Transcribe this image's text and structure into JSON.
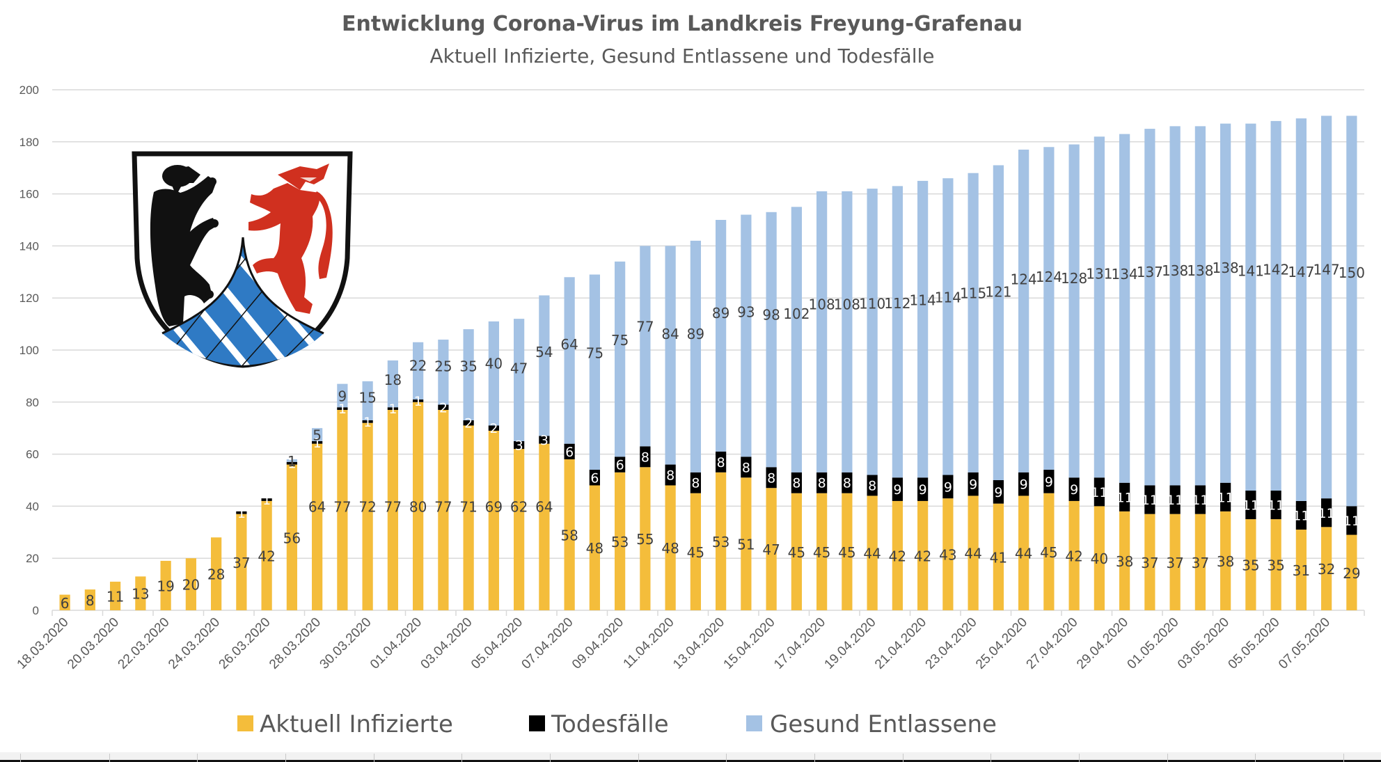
{
  "chart_data": {
    "type": "bar",
    "stacked": true,
    "title": "Entwicklung Corona-Virus im Landkreis Freyung-Grafenau",
    "subtitle": "Aktuell Infizierte, Gesund Entlassene und Todesfälle",
    "xlabel": "",
    "ylabel": "",
    "ylim": [
      0,
      200
    ],
    "yticks": [
      0,
      20,
      40,
      60,
      80,
      100,
      120,
      140,
      160,
      180,
      200
    ],
    "grid": true,
    "legend_position": "bottom",
    "categories": [
      "18.03.2020",
      "19.03.2020",
      "20.03.2020",
      "21.03.2020",
      "22.03.2020",
      "23.03.2020",
      "24.03.2020",
      "25.03.2020",
      "26.03.2020",
      "27.03.2020",
      "28.03.2020",
      "29.03.2020",
      "30.03.2020",
      "31.03.2020",
      "01.04.2020",
      "02.04.2020",
      "03.04.2020",
      "04.04.2020",
      "05.04.2020",
      "06.04.2020",
      "07.04.2020",
      "08.04.2020",
      "09.04.2020",
      "10.04.2020",
      "11.04.2020",
      "12.04.2020",
      "13.04.2020",
      "14.04.2020",
      "15.04.2020",
      "16.04.2020",
      "17.04.2020",
      "18.04.2020",
      "19.04.2020",
      "20.04.2020",
      "21.04.2020",
      "22.04.2020",
      "23.04.2020",
      "24.04.2020",
      "25.04.2020",
      "26.04.2020",
      "27.04.2020",
      "28.04.2020",
      "29.04.2020",
      "30.04.2020",
      "01.05.2020",
      "02.05.2020",
      "03.05.2020",
      "04.05.2020",
      "05.05.2020",
      "06.05.2020",
      "07.05.2020",
      "08.05.2020"
    ],
    "xtick_labels": [
      "18.03.2020",
      "20.03.2020",
      "22.03.2020",
      "24.03.2020",
      "26.03.2020",
      "28.03.2020",
      "30.03.2020",
      "01.04.2020",
      "03.04.2020",
      "05.04.2020",
      "07.04.2020",
      "09.04.2020",
      "11.04.2020",
      "13.04.2020",
      "15.04.2020",
      "17.04.2020",
      "19.04.2020",
      "21.04.2020",
      "23.04.2020",
      "25.04.2020",
      "27.04.2020",
      "29.04.2020",
      "01.05.2020",
      "03.05.2020",
      "05.05.2020",
      "07.05.2020"
    ],
    "series": [
      {
        "name": "Aktuell Infizierte",
        "color": "#F4BD3B",
        "values": [
          6,
          8,
          11,
          13,
          19,
          20,
          28,
          37,
          42,
          56,
          64,
          77,
          72,
          77,
          80,
          77,
          71,
          69,
          62,
          64,
          58,
          48,
          53,
          55,
          48,
          45,
          53,
          51,
          47,
          45,
          45,
          45,
          44,
          42,
          42,
          43,
          44,
          41,
          44,
          45,
          42,
          40,
          38,
          37,
          37,
          37,
          38,
          35,
          35,
          31,
          32,
          29
        ]
      },
      {
        "name": "Todesfälle",
        "color": "#000000",
        "values": [
          0,
          0,
          0,
          0,
          0,
          0,
          0,
          1,
          1,
          1,
          1,
          1,
          1,
          1,
          1,
          2,
          2,
          2,
          3,
          3,
          6,
          6,
          6,
          8,
          8,
          8,
          8,
          8,
          8,
          8,
          8,
          8,
          8,
          9,
          9,
          9,
          9,
          9,
          9,
          9,
          9,
          11,
          11,
          11,
          11,
          11,
          11,
          11,
          11,
          11,
          11,
          11
        ]
      },
      {
        "name": "Gesund Entlassene",
        "color": "#A4C2E4",
        "values": [
          0,
          0,
          0,
          0,
          0,
          0,
          0,
          0,
          0,
          1,
          5,
          9,
          15,
          18,
          22,
          25,
          35,
          40,
          47,
          54,
          64,
          75,
          75,
          77,
          84,
          89,
          89,
          93,
          98,
          102,
          108,
          108,
          110,
          112,
          114,
          114,
          115,
          121,
          124,
          124,
          128,
          131,
          134,
          137,
          138,
          138,
          138,
          141,
          142,
          147,
          147,
          150
        ]
      }
    ]
  },
  "logo": {
    "name": "Wappen Landkreis Freyung-Grafenau",
    "colors": {
      "border": "#111111",
      "field": "#ffffff",
      "bear": "#111111",
      "wolf": "#D0301F",
      "rhombus": "#2F7AC4"
    }
  }
}
